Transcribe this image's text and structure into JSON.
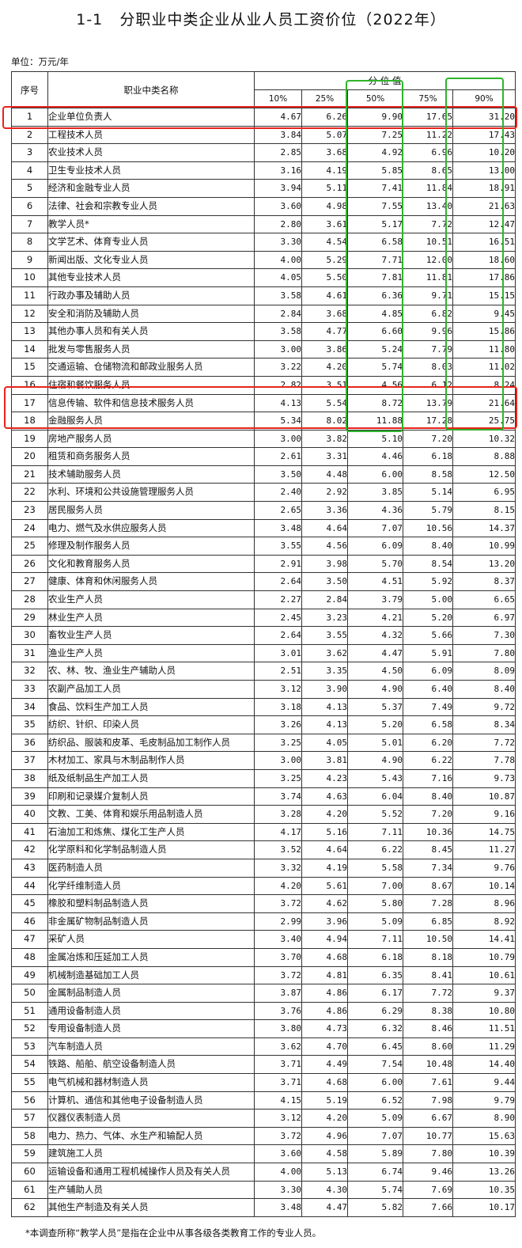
{
  "title": "1-1   分职业中类企业从业人员工资价位（2022年）",
  "unit_label": "单位：万元/年",
  "table": {
    "col_no": "序号",
    "col_name": "职业中类名称",
    "group_header": "分 位 值",
    "percentiles": [
      "10%",
      "25%",
      "50%",
      "75%",
      "90%"
    ],
    "rows": [
      {
        "no": "1",
        "name": "企业单位负责人",
        "p10": "4.67",
        "p25": "6.26",
        "p50": "9.90",
        "p75": "17.65",
        "p90": "31.20"
      },
      {
        "no": "2",
        "name": "工程技术人员",
        "p10": "3.84",
        "p25": "5.07",
        "p50": "7.25",
        "p75": "11.22",
        "p90": "17.43"
      },
      {
        "no": "3",
        "name": "农业技术人员",
        "p10": "2.85",
        "p25": "3.68",
        "p50": "4.92",
        "p75": "6.96",
        "p90": "10.20"
      },
      {
        "no": "4",
        "name": "卫生专业技术人员",
        "p10": "3.16",
        "p25": "4.19",
        "p50": "5.85",
        "p75": "8.65",
        "p90": "13.00"
      },
      {
        "no": "5",
        "name": "经济和金融专业人员",
        "p10": "3.94",
        "p25": "5.11",
        "p50": "7.41",
        "p75": "11.84",
        "p90": "18.91"
      },
      {
        "no": "6",
        "name": "法律、社会和宗教专业人员",
        "p10": "3.60",
        "p25": "4.98",
        "p50": "7.55",
        "p75": "13.40",
        "p90": "21.63"
      },
      {
        "no": "7",
        "name": "教学人员*",
        "p10": "2.80",
        "p25": "3.61",
        "p50": "5.17",
        "p75": "7.72",
        "p90": "12.47"
      },
      {
        "no": "8",
        "name": "文学艺术、体育专业人员",
        "p10": "3.30",
        "p25": "4.54",
        "p50": "6.58",
        "p75": "10.51",
        "p90": "16.51"
      },
      {
        "no": "9",
        "name": "新闻出版、文化专业人员",
        "p10": "4.00",
        "p25": "5.29",
        "p50": "7.71",
        "p75": "12.00",
        "p90": "18.60"
      },
      {
        "no": "10",
        "name": "其他专业技术人员",
        "p10": "4.05",
        "p25": "5.50",
        "p50": "7.81",
        "p75": "11.81",
        "p90": "17.86"
      },
      {
        "no": "11",
        "name": "行政办事及辅助人员",
        "p10": "3.58",
        "p25": "4.61",
        "p50": "6.36",
        "p75": "9.71",
        "p90": "15.15"
      },
      {
        "no": "12",
        "name": "安全和消防及辅助人员",
        "p10": "2.84",
        "p25": "3.68",
        "p50": "4.85",
        "p75": "6.82",
        "p90": "9.45"
      },
      {
        "no": "13",
        "name": "其他办事人员和有关人员",
        "p10": "3.58",
        "p25": "4.77",
        "p50": "6.60",
        "p75": "9.96",
        "p90": "15.86"
      },
      {
        "no": "14",
        "name": "批发与零售服务人员",
        "p10": "3.00",
        "p25": "3.86",
        "p50": "5.24",
        "p75": "7.79",
        "p90": "11.80"
      },
      {
        "no": "15",
        "name": "交通运输、仓储物流和邮政业服务人员",
        "p10": "3.22",
        "p25": "4.20",
        "p50": "5.74",
        "p75": "8.03",
        "p90": "11.02"
      },
      {
        "no": "16",
        "name": "住宿和餐饮服务人员",
        "p10": "2.82",
        "p25": "3.51",
        "p50": "4.56",
        "p75": "6.12",
        "p90": "8.24"
      },
      {
        "no": "17",
        "name": "信息传输、软件和信息技术服务人员",
        "p10": "4.13",
        "p25": "5.54",
        "p50": "8.72",
        "p75": "13.79",
        "p90": "21.64"
      },
      {
        "no": "18",
        "name": "金融服务人员",
        "p10": "5.34",
        "p25": "8.02",
        "p50": "11.88",
        "p75": "17.28",
        "p90": "25.75"
      },
      {
        "no": "19",
        "name": "房地产服务人员",
        "p10": "3.00",
        "p25": "3.82",
        "p50": "5.10",
        "p75": "7.20",
        "p90": "10.32"
      },
      {
        "no": "20",
        "name": "租赁和商务服务人员",
        "p10": "2.61",
        "p25": "3.31",
        "p50": "4.46",
        "p75": "6.18",
        "p90": "8.88"
      },
      {
        "no": "21",
        "name": "技术辅助服务人员",
        "p10": "3.50",
        "p25": "4.48",
        "p50": "6.00",
        "p75": "8.58",
        "p90": "12.50"
      },
      {
        "no": "22",
        "name": "水利、环境和公共设施管理服务人员",
        "p10": "2.40",
        "p25": "2.92",
        "p50": "3.85",
        "p75": "5.14",
        "p90": "6.95"
      },
      {
        "no": "23",
        "name": "居民服务人员",
        "p10": "2.65",
        "p25": "3.36",
        "p50": "4.36",
        "p75": "5.79",
        "p90": "8.15"
      },
      {
        "no": "24",
        "name": "电力、燃气及水供应服务人员",
        "p10": "3.48",
        "p25": "4.64",
        "p50": "7.07",
        "p75": "10.56",
        "p90": "14.37"
      },
      {
        "no": "25",
        "name": "修理及制作服务人员",
        "p10": "3.55",
        "p25": "4.56",
        "p50": "6.09",
        "p75": "8.40",
        "p90": "10.99"
      },
      {
        "no": "26",
        "name": "文化和教育服务人员",
        "p10": "2.91",
        "p25": "3.98",
        "p50": "5.70",
        "p75": "8.54",
        "p90": "13.20"
      },
      {
        "no": "27",
        "name": "健康、体育和休闲服务人员",
        "p10": "2.64",
        "p25": "3.50",
        "p50": "4.51",
        "p75": "5.92",
        "p90": "8.37"
      },
      {
        "no": "28",
        "name": "农业生产人员",
        "p10": "2.27",
        "p25": "2.84",
        "p50": "3.79",
        "p75": "5.00",
        "p90": "6.65"
      },
      {
        "no": "29",
        "name": "林业生产人员",
        "p10": "2.45",
        "p25": "3.23",
        "p50": "4.21",
        "p75": "5.20",
        "p90": "6.97"
      },
      {
        "no": "30",
        "name": "畜牧业生产人员",
        "p10": "2.64",
        "p25": "3.55",
        "p50": "4.32",
        "p75": "5.66",
        "p90": "7.30"
      },
      {
        "no": "31",
        "name": "渔业生产人员",
        "p10": "3.01",
        "p25": "3.62",
        "p50": "4.47",
        "p75": "5.91",
        "p90": "7.80"
      },
      {
        "no": "32",
        "name": "农、林、牧、渔业生产辅助人员",
        "p10": "2.51",
        "p25": "3.35",
        "p50": "4.50",
        "p75": "6.09",
        "p90": "8.09"
      },
      {
        "no": "33",
        "name": "农副产品加工人员",
        "p10": "3.12",
        "p25": "3.90",
        "p50": "4.90",
        "p75": "6.40",
        "p90": "8.40"
      },
      {
        "no": "34",
        "name": "食品、饮料生产加工人员",
        "p10": "3.18",
        "p25": "4.13",
        "p50": "5.37",
        "p75": "7.49",
        "p90": "9.72"
      },
      {
        "no": "35",
        "name": "纺织、针织、印染人员",
        "p10": "3.26",
        "p25": "4.13",
        "p50": "5.20",
        "p75": "6.58",
        "p90": "8.34"
      },
      {
        "no": "36",
        "name": "纺织品、服装和皮革、毛皮制品加工制作人员",
        "p10": "3.25",
        "p25": "4.05",
        "p50": "5.01",
        "p75": "6.20",
        "p90": "7.72"
      },
      {
        "no": "37",
        "name": "木材加工、家具与木制品制作人员",
        "p10": "3.00",
        "p25": "3.81",
        "p50": "4.90",
        "p75": "6.22",
        "p90": "7.78"
      },
      {
        "no": "38",
        "name": "纸及纸制品生产加工人员",
        "p10": "3.25",
        "p25": "4.23",
        "p50": "5.43",
        "p75": "7.16",
        "p90": "9.73"
      },
      {
        "no": "39",
        "name": "印刷和记录媒介复制人员",
        "p10": "3.74",
        "p25": "4.63",
        "p50": "6.04",
        "p75": "8.40",
        "p90": "10.87"
      },
      {
        "no": "40",
        "name": "文教、工美、体育和娱乐用品制造人员",
        "p10": "3.28",
        "p25": "4.20",
        "p50": "5.52",
        "p75": "7.20",
        "p90": "9.16"
      },
      {
        "no": "41",
        "name": "石油加工和炼焦、煤化工生产人员",
        "p10": "4.17",
        "p25": "5.16",
        "p50": "7.11",
        "p75": "10.36",
        "p90": "14.75"
      },
      {
        "no": "42",
        "name": "化学原料和化学制品制造人员",
        "p10": "3.52",
        "p25": "4.64",
        "p50": "6.22",
        "p75": "8.45",
        "p90": "11.27"
      },
      {
        "no": "43",
        "name": "医药制造人员",
        "p10": "3.32",
        "p25": "4.19",
        "p50": "5.58",
        "p75": "7.34",
        "p90": "9.76"
      },
      {
        "no": "44",
        "name": "化学纤维制造人员",
        "p10": "4.20",
        "p25": "5.61",
        "p50": "7.00",
        "p75": "8.67",
        "p90": "10.14"
      },
      {
        "no": "45",
        "name": "橡胶和塑料制品制造人员",
        "p10": "3.72",
        "p25": "4.62",
        "p50": "5.80",
        "p75": "7.28",
        "p90": "8.96"
      },
      {
        "no": "46",
        "name": "非金属矿物制品制造人员",
        "p10": "2.99",
        "p25": "3.96",
        "p50": "5.09",
        "p75": "6.85",
        "p90": "8.92"
      },
      {
        "no": "47",
        "name": "采矿人员",
        "p10": "3.40",
        "p25": "4.94",
        "p50": "7.11",
        "p75": "10.50",
        "p90": "14.41"
      },
      {
        "no": "48",
        "name": "金属冶炼和压延加工人员",
        "p10": "3.70",
        "p25": "4.68",
        "p50": "6.18",
        "p75": "8.18",
        "p90": "10.79"
      },
      {
        "no": "49",
        "name": "机械制造基础加工人员",
        "p10": "3.72",
        "p25": "4.81",
        "p50": "6.35",
        "p75": "8.41",
        "p90": "10.61"
      },
      {
        "no": "50",
        "name": "金属制品制造人员",
        "p10": "3.87",
        "p25": "4.86",
        "p50": "6.17",
        "p75": "7.72",
        "p90": "9.37"
      },
      {
        "no": "51",
        "name": "通用设备制造人员",
        "p10": "3.76",
        "p25": "4.86",
        "p50": "6.29",
        "p75": "8.38",
        "p90": "10.80"
      },
      {
        "no": "52",
        "name": "专用设备制造人员",
        "p10": "3.80",
        "p25": "4.73",
        "p50": "6.32",
        "p75": "8.46",
        "p90": "11.51"
      },
      {
        "no": "53",
        "name": "汽车制造人员",
        "p10": "3.62",
        "p25": "4.70",
        "p50": "6.45",
        "p75": "8.60",
        "p90": "11.29"
      },
      {
        "no": "54",
        "name": "铁路、船舶、航空设备制造人员",
        "p10": "3.71",
        "p25": "4.49",
        "p50": "7.54",
        "p75": "10.48",
        "p90": "14.40"
      },
      {
        "no": "55",
        "name": "电气机械和器材制造人员",
        "p10": "3.71",
        "p25": "4.68",
        "p50": "6.00",
        "p75": "7.61",
        "p90": "9.44"
      },
      {
        "no": "56",
        "name": "计算机、通信和其他电子设备制造人员",
        "p10": "4.15",
        "p25": "5.19",
        "p50": "6.52",
        "p75": "7.98",
        "p90": "9.79"
      },
      {
        "no": "57",
        "name": "仪器仪表制造人员",
        "p10": "3.12",
        "p25": "4.20",
        "p50": "5.09",
        "p75": "6.67",
        "p90": "8.90"
      },
      {
        "no": "58",
        "name": "电力、热力、气体、水生产和输配人员",
        "p10": "3.72",
        "p25": "4.96",
        "p50": "7.07",
        "p75": "10.77",
        "p90": "15.63"
      },
      {
        "no": "59",
        "name": "建筑施工人员",
        "p10": "3.60",
        "p25": "4.58",
        "p50": "5.89",
        "p75": "7.80",
        "p90": "10.39"
      },
      {
        "no": "60",
        "name": "运输设备和通用工程机械操作人员及有关人员",
        "p10": "4.00",
        "p25": "5.13",
        "p50": "6.74",
        "p75": "9.46",
        "p90": "13.26"
      },
      {
        "no": "61",
        "name": "生产辅助人员",
        "p10": "3.30",
        "p25": "4.30",
        "p50": "5.74",
        "p75": "7.69",
        "p90": "10.35"
      },
      {
        "no": "62",
        "name": "其他生产制造及有关人员",
        "p10": "3.48",
        "p25": "4.47",
        "p50": "5.82",
        "p75": "7.66",
        "p90": "10.17"
      }
    ]
  },
  "footnote": "*本调查所称“教学人员”是指在企业中从事各级各类教育工作的专业人员。",
  "highlights": {
    "red_color": "#e8231c",
    "green_color": "#2fb42c"
  }
}
